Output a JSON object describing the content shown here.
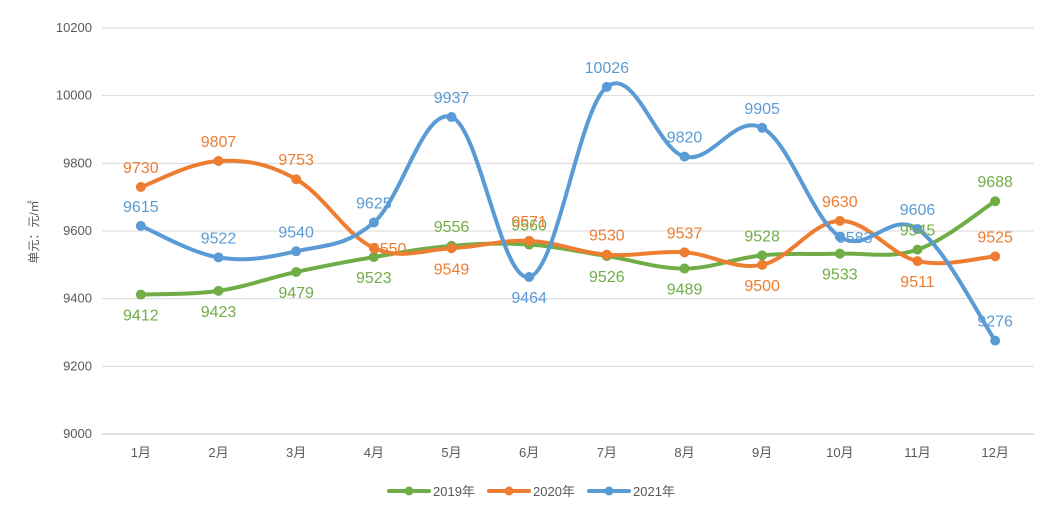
{
  "chart_data": {
    "type": "line",
    "ylabel": "单元：元/㎡",
    "ylim": [
      9000,
      10200
    ],
    "yticks": [
      "9000",
      "9200",
      "9400",
      "9600",
      "9800",
      "10000",
      "10200"
    ],
    "categories": [
      "1月",
      "2月",
      "3月",
      "4月",
      "5月",
      "6月",
      "7月",
      "8月",
      "9月",
      "10月",
      "11月",
      "12月"
    ],
    "grid": true,
    "smooth": true,
    "legend_position": "bottom",
    "series": [
      {
        "name": "2019年",
        "color": "#70AD47",
        "values": [
          9412,
          9423,
          9479,
          9523,
          9556,
          9560,
          9526,
          9489,
          9528,
          9533,
          9545,
          9688
        ],
        "label_pos": [
          "below",
          "below",
          "below",
          "below",
          "above",
          "above",
          "below",
          "below",
          "above",
          "below",
          "above",
          "above"
        ]
      },
      {
        "name": "2020年",
        "color": "#ED7D31",
        "values": [
          9730,
          9807,
          9753,
          9550,
          9549,
          9571,
          9530,
          9537,
          9500,
          9630,
          9511,
          9525
        ],
        "label_pos": [
          "above",
          "above",
          "above",
          "right",
          "below",
          "above",
          "above",
          "above",
          "below",
          "above",
          "below",
          "above"
        ]
      },
      {
        "name": "2021年",
        "color": "#5B9BD5",
        "values": [
          9615,
          9522,
          9540,
          9625,
          9937,
          9464,
          10026,
          9820,
          9905,
          9583,
          9606,
          9276
        ],
        "label_pos": [
          "above",
          "above",
          "above",
          "above",
          "above",
          "below",
          "above",
          "above",
          "above",
          "right",
          "above",
          "above"
        ]
      }
    ]
  }
}
